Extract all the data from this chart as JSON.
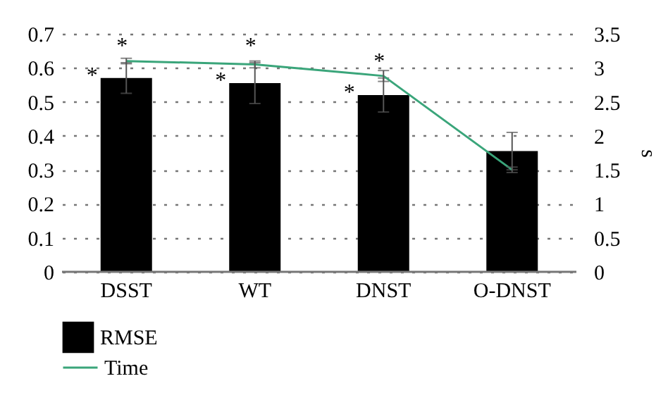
{
  "chart_data": {
    "type": "bar",
    "categories": [
      "DSST",
      "WT",
      "DNST",
      "O-DNST"
    ],
    "series": [
      {
        "name": "RMSE",
        "type": "bar",
        "color": "#000000",
        "values": [
          0.57,
          0.555,
          0.52,
          0.355
        ],
        "errors": [
          0.045,
          0.06,
          0.05,
          0.055
        ]
      },
      {
        "name": "Time",
        "type": "line",
        "axis": "y2",
        "color": "#3aa57a",
        "values": [
          3.1,
          3.05,
          2.88,
          1.5
        ],
        "errors": [
          0.04,
          0.05,
          0.08,
          0.04
        ]
      }
    ],
    "ylim": [
      0,
      0.7
    ],
    "yticks": [
      0,
      0.1,
      0.2,
      0.3,
      0.4,
      0.5,
      0.6,
      0.7
    ],
    "y2lim": [
      0,
      3.5
    ],
    "y2ticks": [
      0,
      0.5,
      1,
      1.5,
      2,
      2.5,
      3,
      3.5
    ],
    "y2label": "s",
    "grid": "y",
    "legend": "bottom left",
    "annotations": [
      "*",
      "*",
      "*",
      "*",
      "*",
      "*"
    ]
  }
}
